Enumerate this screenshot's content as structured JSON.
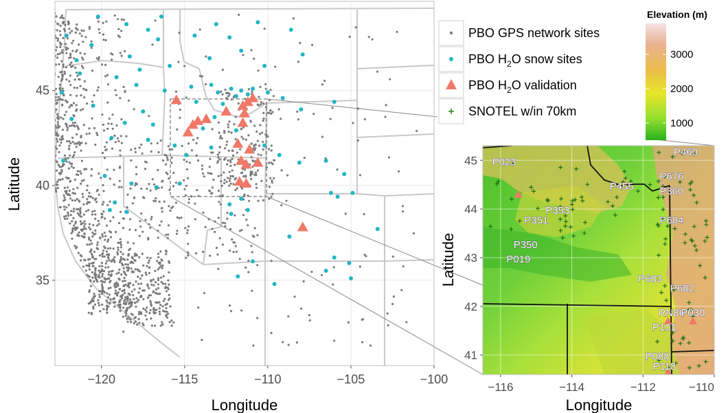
{
  "main_map": {
    "xlabel": "Longitude",
    "ylabel": "Latitude",
    "x_ticks": [
      "-120",
      "-115",
      "-110",
      "-105",
      "-100"
    ],
    "y_ticks": [
      "45",
      "40",
      "35"
    ],
    "xlim": [
      -122.8,
      -100
    ],
    "ylim": [
      30.5,
      49.7
    ],
    "grid": true,
    "colors": {
      "panel_bg": "#ffffff",
      "state_lines": "#c8c8c8",
      "gps": "#7a7a7a",
      "snow": "#22b5c4",
      "validation": "#f07868"
    }
  },
  "legend": {
    "items": [
      {
        "label": "PBO GPS network sites",
        "icon": "dot-icon",
        "color": "#7a7a7a"
      },
      {
        "label_main": "PBO H",
        "label_sub": "2",
        "label_end": "O snow sites",
        "icon": "dot-icon",
        "color": "#22b5c4"
      },
      {
        "label_main": "PBO H",
        "label_sub": "2",
        "label_end": "O validation",
        "icon": "triangle-icon",
        "color": "#f07868"
      },
      {
        "label": "SNOTEL w/in 70km",
        "icon": "plus-icon",
        "color": "#2e7d1e"
      }
    ]
  },
  "colorbar": {
    "title": "Elevation (m)",
    "ticks": [
      "3000",
      "2000",
      "1000"
    ],
    "tick_values": [
      3000,
      2000,
      1000
    ],
    "range": [
      500,
      3900
    ],
    "colors": [
      "#f5e1e4",
      "#e8b28f",
      "#ebbd4a",
      "#e7e52a",
      "#9be12f",
      "#29b31e"
    ]
  },
  "inset_map": {
    "xlabel": "Longitude",
    "ylabel": "Latitude",
    "x_ticks": [
      "-116",
      "-114",
      "-112",
      "-110"
    ],
    "y_ticks": [
      "45",
      "44",
      "43",
      "42",
      "41"
    ],
    "xlim": [
      -116.5,
      -110
    ],
    "ylim": [
      40.6,
      45.3
    ],
    "site_labels": [
      {
        "name": "P023",
        "lon": -115.9,
        "lat": 44.9
      },
      {
        "name": "P460",
        "lon": -110.8,
        "lat": 45.1
      },
      {
        "name": "P676",
        "lon": -111.2,
        "lat": 44.6
      },
      {
        "name": "P455",
        "lon": -112.6,
        "lat": 44.4
      },
      {
        "name": "P360",
        "lon": -111.2,
        "lat": 44.3
      },
      {
        "name": "P353",
        "lon": -114.4,
        "lat": 43.9
      },
      {
        "name": "P351",
        "lon": -115.0,
        "lat": 43.7
      },
      {
        "name": "P684",
        "lon": -111.2,
        "lat": 43.7
      },
      {
        "name": "P350",
        "lon": -115.3,
        "lat": 43.2
      },
      {
        "name": "P019",
        "lon": -115.5,
        "lat": 42.9
      },
      {
        "name": "P683",
        "lon": -111.8,
        "lat": 42.5
      },
      {
        "name": "P682",
        "lon": -110.9,
        "lat": 42.3
      },
      {
        "name": "RN86",
        "lon": -111.2,
        "lat": 41.8
      },
      {
        "name": "P030",
        "lon": -110.6,
        "lat": 41.8
      },
      {
        "name": "P101",
        "lon": -111.4,
        "lat": 41.5
      },
      {
        "name": "P088",
        "lon": -111.6,
        "lat": 40.9
      },
      {
        "name": "P118",
        "lon": -111.4,
        "lat": 40.7
      }
    ],
    "triangles": [
      {
        "lon": -115.5,
        "lat": 44.3
      },
      {
        "lon": -111.3,
        "lat": 41.7
      },
      {
        "lon": -110.6,
        "lat": 41.7
      },
      {
        "lon": -111.3,
        "lat": 40.65
      }
    ]
  },
  "sites": {
    "validation": [
      [
        -115.5,
        44.5
      ],
      [
        -114.8,
        42.8
      ],
      [
        -114.5,
        43.2
      ],
      [
        -114.2,
        43.4
      ],
      [
        -113.7,
        43.5
      ],
      [
        -112.5,
        43.9
      ],
      [
        -111.5,
        44.2
      ],
      [
        -111.2,
        44.4
      ],
      [
        -110.9,
        44.6
      ],
      [
        -111.4,
        43.8
      ],
      [
        -111.5,
        43.3
      ],
      [
        -111.8,
        42.2
      ],
      [
        -111.1,
        41.9
      ],
      [
        -111.6,
        41.3
      ],
      [
        -111.3,
        41.1
      ],
      [
        -110.6,
        41.2
      ],
      [
        -111.7,
        40.2
      ],
      [
        -111.3,
        40.1
      ],
      [
        -107.9,
        37.8
      ]
    ],
    "snow": [
      [
        -118.5,
        48.5
      ],
      [
        -117.2,
        48.2
      ],
      [
        -116.6,
        47.7
      ],
      [
        -118.3,
        46.8
      ],
      [
        -115.9,
        46.3
      ],
      [
        -114.4,
        47.9
      ],
      [
        -113.1,
        48.5
      ],
      [
        -112.3,
        47.8
      ],
      [
        -110.6,
        48.6
      ],
      [
        -108.6,
        48.2
      ],
      [
        -111.6,
        47.1
      ],
      [
        -113.5,
        46.7
      ],
      [
        -110.2,
        46.3
      ],
      [
        -107.9,
        46.9
      ],
      [
        -119.1,
        45.7
      ],
      [
        -117.9,
        45.3
      ],
      [
        -116.2,
        45.0
      ],
      [
        -113.4,
        45.3
      ],
      [
        -112.2,
        45.1
      ],
      [
        -111.6,
        45.0
      ],
      [
        -110.9,
        45.1
      ],
      [
        -110.0,
        44.9
      ],
      [
        -109.1,
        44.6
      ],
      [
        -108.0,
        44.0
      ],
      [
        -106.0,
        44.4
      ],
      [
        -111.9,
        44.7
      ],
      [
        -111.2,
        44.8
      ],
      [
        -112.7,
        44.3
      ],
      [
        -114.3,
        44.4
      ],
      [
        -117.5,
        43.9
      ],
      [
        -118.6,
        43.3
      ],
      [
        -116.9,
        43.2
      ],
      [
        -119.4,
        42.5
      ],
      [
        -117.2,
        42.4
      ],
      [
        -115.6,
        42.1
      ],
      [
        -114.9,
        41.6
      ],
      [
        -113.4,
        42.0
      ],
      [
        -111.9,
        42.9
      ],
      [
        -110.2,
        42.1
      ],
      [
        -109.3,
        41.6
      ],
      [
        -108.1,
        41.2
      ],
      [
        -106.5,
        41.3
      ],
      [
        -105.4,
        40.6
      ],
      [
        -106.2,
        39.6
      ],
      [
        -105.8,
        39.4
      ],
      [
        -104.9,
        39.6
      ],
      [
        -103.4,
        37.7
      ],
      [
        -106.0,
        36.2
      ],
      [
        -105.1,
        35.9
      ],
      [
        -106.5,
        35.5
      ],
      [
        -105.0,
        35.1
      ],
      [
        -108.7,
        37.3
      ],
      [
        -110.9,
        36.0
      ],
      [
        -109.6,
        34.8
      ],
      [
        -111.8,
        35.2
      ],
      [
        -111.6,
        39.3
      ],
      [
        -112.3,
        39.0
      ],
      [
        -111.2,
        38.7
      ],
      [
        -119.2,
        39.1
      ],
      [
        -118.5,
        38.6
      ],
      [
        -119.8,
        40.5
      ],
      [
        -118.2,
        40.1
      ],
      [
        -116.7,
        39.9
      ],
      [
        -115.3,
        40.1
      ],
      [
        -122.3,
        41.3
      ],
      [
        -121.5,
        46.6
      ],
      [
        -122.1,
        47.9
      ],
      [
        -123.2,
        47.3
      ],
      [
        -120.2,
        48.9
      ],
      [
        -120.6,
        47.4
      ],
      [
        -121.3,
        45.9
      ],
      [
        -122.4,
        44.9
      ],
      [
        -121.8,
        43.5
      ],
      [
        -120.5,
        44.2
      ],
      [
        -113.2,
        43.6
      ],
      [
        -113.9,
        43.0
      ],
      [
        -116.4,
        48.9
      ],
      [
        -117.7,
        46.1
      ],
      [
        -114.6,
        45.2
      ],
      [
        -113.0,
        44.9
      ],
      [
        -112.2,
        38.5
      ],
      [
        -119.5,
        38.7
      ]
    ]
  }
}
